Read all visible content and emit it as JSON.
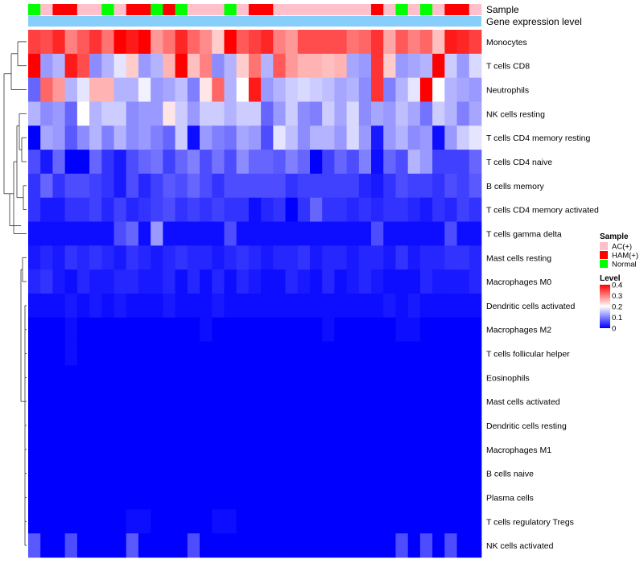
{
  "chart_data": {
    "type": "heatmap",
    "title": "",
    "annotations": {
      "sample_label": "Sample",
      "gene_label": "Gene expression level",
      "sample_groups": [
        "N",
        "A",
        "H",
        "H",
        "A",
        "A",
        "N",
        "A",
        "H",
        "H",
        "N",
        "H",
        "N",
        "A",
        "A",
        "A",
        "N",
        "A",
        "H",
        "H",
        "A",
        "A",
        "A",
        "A",
        "A",
        "A",
        "A",
        "A",
        "H",
        "A",
        "N",
        "A",
        "N",
        "A",
        "H",
        "H",
        "A"
      ]
    },
    "rows": [
      "Monocytes",
      "T cells CD8",
      "Neutrophils",
      "NK cells resting",
      "T cells CD4 memory resting",
      "T cells CD4 naive",
      "B cells memory",
      "T cells CD4 memory activated",
      "T cells gamma delta",
      "Mast cells resting",
      "Macrophages M0",
      "Dendritic cells activated",
      "Macrophages M2",
      "T cells follicular helper",
      "Eosinophils",
      "Mast cells activated",
      "Dendritic cells resting",
      "Macrophages M1",
      "B cells naive",
      "Plasma cells",
      "T cells regulatory  Tregs",
      "NK cells activated"
    ],
    "values": [
      [
        0.35,
        0.34,
        0.37,
        0.3,
        0.33,
        0.36,
        0.31,
        0.4,
        0.38,
        0.4,
        0.28,
        0.31,
        0.37,
        0.32,
        0.29,
        0.24,
        0.4,
        0.33,
        0.35,
        0.37,
        0.3,
        0.28,
        0.34,
        0.34,
        0.34,
        0.34,
        0.31,
        0.32,
        0.36,
        0.27,
        0.33,
        0.3,
        0.32,
        0.25,
        0.38,
        0.37,
        0.35
      ],
      [
        0.4,
        0.12,
        0.14,
        0.38,
        0.34,
        0.11,
        0.14,
        0.18,
        0.24,
        0.12,
        0.14,
        0.26,
        0.4,
        0.25,
        0.3,
        0.11,
        0.14,
        0.24,
        0.31,
        0.14,
        0.33,
        0.28,
        0.26,
        0.26,
        0.25,
        0.26,
        0.13,
        0.12,
        0.36,
        0.24,
        0.12,
        0.13,
        0.14,
        0.4,
        0.16,
        0.12,
        0.17
      ],
      [
        0.08,
        0.32,
        0.28,
        0.14,
        0.18,
        0.26,
        0.26,
        0.14,
        0.14,
        0.19,
        0.12,
        0.13,
        0.15,
        0.1,
        0.22,
        0.32,
        0.14,
        0.2,
        0.38,
        0.12,
        0.14,
        0.16,
        0.17,
        0.16,
        0.15,
        0.13,
        0.14,
        0.11,
        0.36,
        0.1,
        0.14,
        0.18,
        0.4,
        0.2,
        0.14,
        0.13,
        0.12
      ],
      [
        0.14,
        0.11,
        0.12,
        0.08,
        0.2,
        0.14,
        0.16,
        0.16,
        0.11,
        0.12,
        0.12,
        0.22,
        0.16,
        0.12,
        0.16,
        0.16,
        0.14,
        0.16,
        0.16,
        0.08,
        0.12,
        0.16,
        0.11,
        0.1,
        0.16,
        0.13,
        0.17,
        0.11,
        0.13,
        0.12,
        0.15,
        0.13,
        0.09,
        0.16,
        0.14,
        0.1,
        0.13
      ],
      [
        0.0,
        0.13,
        0.12,
        0.07,
        0.11,
        0.14,
        0.1,
        0.14,
        0.11,
        0.12,
        0.1,
        0.08,
        0.16,
        0.01,
        0.12,
        0.1,
        0.09,
        0.13,
        0.12,
        0.06,
        0.18,
        0.15,
        0.11,
        0.14,
        0.14,
        0.12,
        0.17,
        0.12,
        0.02,
        0.12,
        0.14,
        0.11,
        0.12,
        0.01,
        0.12,
        0.16,
        0.18
      ],
      [
        0.06,
        0.02,
        0.08,
        0.0,
        0.0,
        0.08,
        0.04,
        0.02,
        0.06,
        0.08,
        0.09,
        0.05,
        0.08,
        0.1,
        0.06,
        0.09,
        0.06,
        0.11,
        0.08,
        0.08,
        0.07,
        0.1,
        0.08,
        0.0,
        0.05,
        0.08,
        0.06,
        0.1,
        0.01,
        0.08,
        0.06,
        0.14,
        0.12,
        0.05,
        0.05,
        0.05,
        0.08
      ],
      [
        0.04,
        0.08,
        0.04,
        0.06,
        0.06,
        0.05,
        0.04,
        0.02,
        0.06,
        0.03,
        0.05,
        0.07,
        0.06,
        0.08,
        0.06,
        0.04,
        0.06,
        0.06,
        0.06,
        0.06,
        0.06,
        0.04,
        0.05,
        0.05,
        0.05,
        0.05,
        0.05,
        0.03,
        0.02,
        0.04,
        0.06,
        0.05,
        0.05,
        0.04,
        0.06,
        0.05,
        0.07
      ],
      [
        0.04,
        0.02,
        0.02,
        0.04,
        0.04,
        0.05,
        0.03,
        0.05,
        0.03,
        0.04,
        0.05,
        0.06,
        0.04,
        0.05,
        0.04,
        0.05,
        0.04,
        0.04,
        0.01,
        0.03,
        0.04,
        0.0,
        0.04,
        0.08,
        0.04,
        0.04,
        0.03,
        0.04,
        0.03,
        0.04,
        0.04,
        0.03,
        0.02,
        0.04,
        0.03,
        0.05,
        0.04
      ],
      [
        0.01,
        0.01,
        0.01,
        0.01,
        0.01,
        0.01,
        0.01,
        0.06,
        0.08,
        0.01,
        0.12,
        0.01,
        0.01,
        0.01,
        0.01,
        0.01,
        0.06,
        0.01,
        0.01,
        0.01,
        0.01,
        0.01,
        0.01,
        0.01,
        0.01,
        0.01,
        0.01,
        0.01,
        0.06,
        0.01,
        0.01,
        0.01,
        0.01,
        0.01,
        0.06,
        0.01,
        0.01
      ],
      [
        0.02,
        0.03,
        0.02,
        0.04,
        0.03,
        0.04,
        0.03,
        0.02,
        0.04,
        0.03,
        0.02,
        0.03,
        0.04,
        0.03,
        0.03,
        0.02,
        0.03,
        0.04,
        0.03,
        0.02,
        0.03,
        0.03,
        0.04,
        0.02,
        0.03,
        0.03,
        0.02,
        0.03,
        0.03,
        0.02,
        0.04,
        0.02,
        0.03,
        0.03,
        0.04,
        0.04,
        0.03
      ],
      [
        0.03,
        0.04,
        0.02,
        0.01,
        0.03,
        0.02,
        0.02,
        0.03,
        0.03,
        0.02,
        0.02,
        0.03,
        0.01,
        0.03,
        0.01,
        0.03,
        0.01,
        0.03,
        0.02,
        0.01,
        0.01,
        0.03,
        0.02,
        0.01,
        0.03,
        0.01,
        0.02,
        0.03,
        0.02,
        0.01,
        0.01,
        0.01,
        0.03,
        0.02,
        0.02,
        0.02,
        0.03
      ],
      [
        0.01,
        0.01,
        0.01,
        0.02,
        0.01,
        0.02,
        0.01,
        0.02,
        0.01,
        0.01,
        0.01,
        0.02,
        0.01,
        0.01,
        0.01,
        0.02,
        0.01,
        0.01,
        0.01,
        0.01,
        0.01,
        0.01,
        0.01,
        0.01,
        0.01,
        0.01,
        0.01,
        0.01,
        0.01,
        0.02,
        0.01,
        0.02,
        0.01,
        0.01,
        0.01,
        0.01,
        0.01
      ],
      [
        0.0,
        0.0,
        0.0,
        0.01,
        0.0,
        0.0,
        0.0,
        0.0,
        0.0,
        0.0,
        0.0,
        0.0,
        0.0,
        0.0,
        0.01,
        0.0,
        0.0,
        0.0,
        0.0,
        0.0,
        0.0,
        0.0,
        0.0,
        0.0,
        0.01,
        0.0,
        0.0,
        0.0,
        0.0,
        0.0,
        0.01,
        0.01,
        0.0,
        0.0,
        0.0,
        0.0,
        0.0
      ],
      [
        0.0,
        0.0,
        0.0,
        0.01,
        0.0,
        0.0,
        0.0,
        0.0,
        0.0,
        0.0,
        0.0,
        0.0,
        0.0,
        0.0,
        0.0,
        0.0,
        0.0,
        0.0,
        0.0,
        0.0,
        0.0,
        0.0,
        0.0,
        0.0,
        0.0,
        0.0,
        0.0,
        0.0,
        0.0,
        0.0,
        0.0,
        0.0,
        0.0,
        0.0,
        0.0,
        0.0,
        0.0
      ],
      [
        0.0,
        0.0,
        0.0,
        0.0,
        0.0,
        0.0,
        0.0,
        0.0,
        0.0,
        0.0,
        0.0,
        0.0,
        0.0,
        0.0,
        0.0,
        0.0,
        0.0,
        0.0,
        0.0,
        0.0,
        0.0,
        0.0,
        0.0,
        0.0,
        0.0,
        0.0,
        0.0,
        0.0,
        0.0,
        0.0,
        0.0,
        0.0,
        0.0,
        0.0,
        0.0,
        0.0,
        0.0
      ],
      [
        0.0,
        0.0,
        0.0,
        0.0,
        0.0,
        0.0,
        0.0,
        0.0,
        0.0,
        0.0,
        0.0,
        0.0,
        0.0,
        0.0,
        0.0,
        0.0,
        0.0,
        0.0,
        0.0,
        0.0,
        0.0,
        0.0,
        0.0,
        0.0,
        0.0,
        0.0,
        0.0,
        0.0,
        0.0,
        0.0,
        0.0,
        0.0,
        0.0,
        0.0,
        0.0,
        0.0,
        0.0
      ],
      [
        0.0,
        0.0,
        0.0,
        0.0,
        0.0,
        0.0,
        0.0,
        0.0,
        0.0,
        0.0,
        0.0,
        0.0,
        0.0,
        0.0,
        0.0,
        0.0,
        0.0,
        0.0,
        0.0,
        0.0,
        0.0,
        0.0,
        0.0,
        0.0,
        0.0,
        0.0,
        0.0,
        0.0,
        0.0,
        0.0,
        0.0,
        0.0,
        0.0,
        0.0,
        0.0,
        0.0,
        0.0
      ],
      [
        0.0,
        0.0,
        0.0,
        0.0,
        0.0,
        0.0,
        0.0,
        0.0,
        0.0,
        0.0,
        0.0,
        0.0,
        0.0,
        0.0,
        0.0,
        0.0,
        0.0,
        0.0,
        0.0,
        0.0,
        0.0,
        0.0,
        0.0,
        0.0,
        0.0,
        0.0,
        0.0,
        0.0,
        0.0,
        0.0,
        0.0,
        0.0,
        0.0,
        0.0,
        0.0,
        0.0,
        0.0
      ],
      [
        0.0,
        0.0,
        0.0,
        0.0,
        0.0,
        0.0,
        0.0,
        0.0,
        0.0,
        0.0,
        0.0,
        0.0,
        0.0,
        0.0,
        0.0,
        0.0,
        0.0,
        0.0,
        0.0,
        0.0,
        0.0,
        0.0,
        0.0,
        0.0,
        0.0,
        0.0,
        0.0,
        0.0,
        0.0,
        0.0,
        0.0,
        0.0,
        0.0,
        0.0,
        0.0,
        0.0,
        0.0
      ],
      [
        0.0,
        0.0,
        0.0,
        0.0,
        0.0,
        0.0,
        0.0,
        0.0,
        0.0,
        0.0,
        0.0,
        0.0,
        0.0,
        0.0,
        0.0,
        0.0,
        0.0,
        0.0,
        0.0,
        0.0,
        0.0,
        0.0,
        0.0,
        0.0,
        0.0,
        0.0,
        0.0,
        0.0,
        0.0,
        0.0,
        0.0,
        0.0,
        0.0,
        0.0,
        0.0,
        0.0,
        0.0
      ],
      [
        0.0,
        0.0,
        0.0,
        0.0,
        0.0,
        0.0,
        0.0,
        0.0,
        0.01,
        0.01,
        0.0,
        0.0,
        0.0,
        0.0,
        0.0,
        0.01,
        0.01,
        0.0,
        0.0,
        0.0,
        0.0,
        0.0,
        0.0,
        0.0,
        0.0,
        0.0,
        0.0,
        0.0,
        0.0,
        0.0,
        0.0,
        0.0,
        0.0,
        0.0,
        0.0,
        0.0,
        0.0
      ],
      [
        0.07,
        0.0,
        0.0,
        0.06,
        0.0,
        0.0,
        0.0,
        0.0,
        0.07,
        0.0,
        0.0,
        0.0,
        0.0,
        0.06,
        0.0,
        0.0,
        0.0,
        0.0,
        0.0,
        0.0,
        0.0,
        0.0,
        0.0,
        0.0,
        0.0,
        0.0,
        0.0,
        0.0,
        0.0,
        0.0,
        0.06,
        0.0,
        0.06,
        0.0,
        0.06,
        0.0,
        0.0
      ]
    ],
    "colorscale": {
      "min": 0,
      "max": 0.4,
      "low": "#0000FF",
      "mid": "#FFFFFF",
      "high": "#FF0000",
      "mid_value": 0.2
    },
    "legend": {
      "sample_title": "Sample",
      "sample_items": [
        {
          "key": "A",
          "label": "AC(+)",
          "color": "#FFC0CB"
        },
        {
          "key": "H",
          "label": "HAM(+)",
          "color": "#FF0000"
        },
        {
          "key": "N",
          "label": "Normal",
          "color": "#00FF00"
        }
      ],
      "level_title": "Level",
      "level_ticks": [
        "0.4",
        "0.3",
        "0.2",
        "0.1",
        "0"
      ],
      "gene_color": "#87CEFA"
    },
    "dendrogram": "rows"
  }
}
